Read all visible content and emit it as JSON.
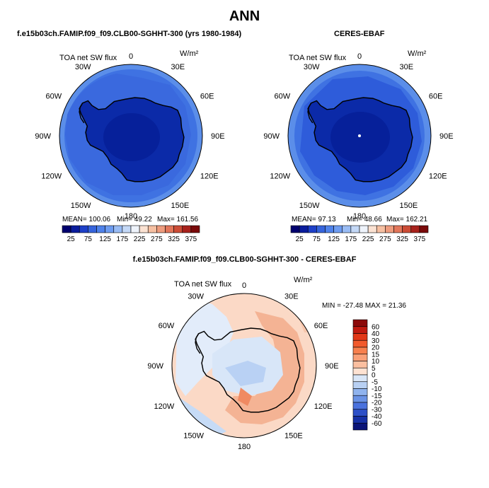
{
  "figure": {
    "title": "ANN"
  },
  "panels": [
    {
      "id": "model",
      "heading": "f.e15b03ch.FAMIP.f09_f09.CLB00-SGHHT-300 (yrs 1980-1984)",
      "field_label": "TOA net SW flux",
      "units": "W/m²",
      "mean_text": "MEAN= 100.06",
      "min_text": "Min=  49.22",
      "max_text": "Max= 161.56"
    },
    {
      "id": "obs",
      "heading": "CERES-EBAF",
      "field_label": "TOA net SW flux",
      "units": "W/m²",
      "mean_text": "MEAN=  97.13",
      "min_text": "Min=  48.66",
      "max_text": "Max= 162.21"
    },
    {
      "id": "diff",
      "heading": "f.e15b03ch.FAMIP.f09_f09.CLB00-SGHHT-300 - CERES-EBAF",
      "field_label": "TOA net SW flux",
      "units": "W/m²",
      "minmax_text": "MIN = -27.48 MAX =  21.36"
    }
  ],
  "longitude_labels": [
    "0",
    "30E",
    "60E",
    "90E",
    "120E",
    "150E",
    "180",
    "150W",
    "120W",
    "90W",
    "60W",
    "30W"
  ],
  "abs_colorbar": {
    "colors": [
      "#00006e",
      "#0a1c9c",
      "#1e40c8",
      "#3664dc",
      "#4f82ea",
      "#6e9cf0",
      "#99bcf4",
      "#c4d8f6",
      "#eef3fb",
      "#fbe2d2",
      "#f6c0a2",
      "#ee9c7e",
      "#e2765a",
      "#cc4c36",
      "#a8221c",
      "#7a0a0a"
    ],
    "tick_labels": [
      "25",
      "75",
      "125",
      "175",
      "225",
      "275",
      "325",
      "375"
    ]
  },
  "diff_colorbar": {
    "levels": [
      "60",
      "40",
      "30",
      "20",
      "15",
      "10",
      "5",
      "0",
      "-5",
      "-10",
      "-15",
      "-20",
      "-30",
      "-40",
      "-60"
    ],
    "colors": [
      "#8c0a0a",
      "#c01a10",
      "#e23818",
      "#f25a2c",
      "#f7804e",
      "#f9a078",
      "#fbbfa0",
      "#fde2d2",
      "#d9e6f7",
      "#b8d0f3",
      "#8fb3ee",
      "#6a93e6",
      "#4a72de",
      "#2d50c8",
      "#1630a6",
      "#0a1478"
    ]
  }
}
